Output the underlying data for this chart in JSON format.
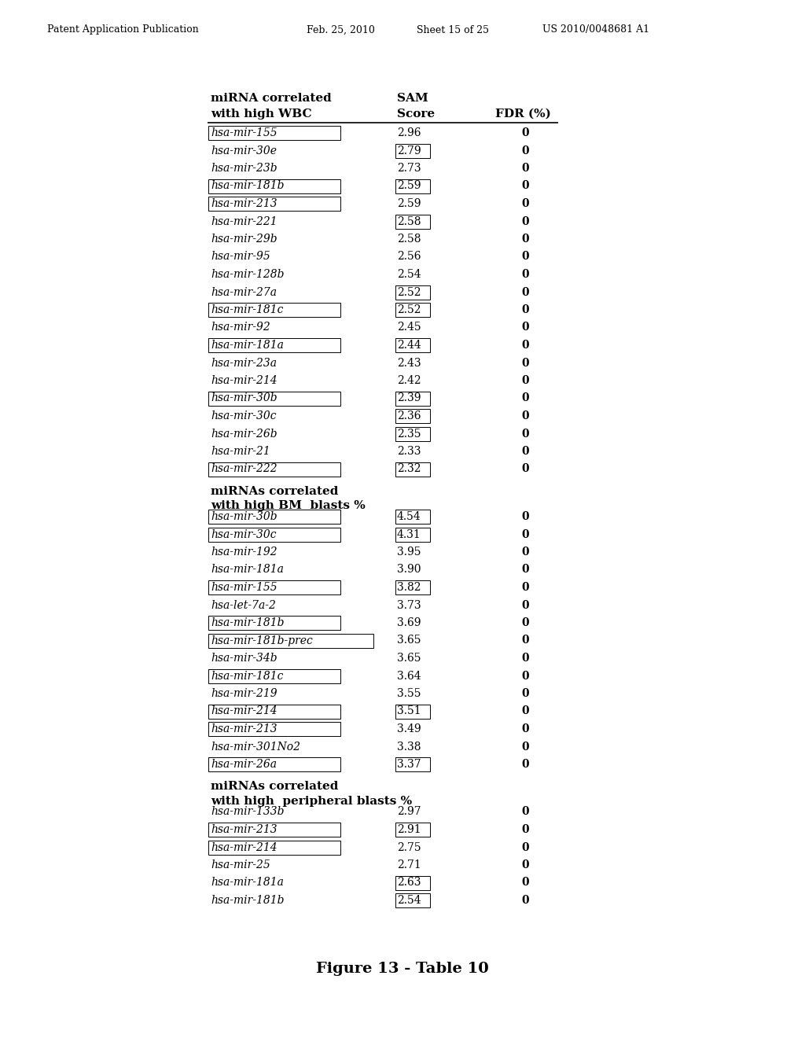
{
  "header_line": "Patent Application Publication    Feb. 25, 2010  Sheet 15 of 25    US 2010/0048681 A1",
  "figure_caption": "Figure 13 - Table 10",
  "table": {
    "section1_header1": "miRNA correlated",
    "section1_header2": "with high WBC",
    "section1_col2_header1": "SAM",
    "section1_col2_header2": "Score",
    "section1_col3_header": "FDR (%)",
    "section1_rows": [
      {
        "name": "hsa-mir-155",
        "score": "2.96",
        "fdr": "0",
        "box_name": true,
        "box_score": false
      },
      {
        "name": "hsa-mir-30e",
        "score": "2.79",
        "fdr": "0",
        "box_name": false,
        "box_score": true
      },
      {
        "name": "hsa-mir-23b",
        "score": "2.73",
        "fdr": "0",
        "box_name": false,
        "box_score": false
      },
      {
        "name": "hsa-mir-181b",
        "score": "2.59",
        "fdr": "0",
        "box_name": true,
        "box_score": true
      },
      {
        "name": "hsa-mir-213",
        "score": "2.59",
        "fdr": "0",
        "box_name": true,
        "box_score": false
      },
      {
        "name": "hsa-mir-221",
        "score": "2.58",
        "fdr": "0",
        "box_name": false,
        "box_score": true
      },
      {
        "name": "hsa-mir-29b",
        "score": "2.58",
        "fdr": "0",
        "box_name": false,
        "box_score": false
      },
      {
        "name": "hsa-mir-95",
        "score": "2.56",
        "fdr": "0",
        "box_name": false,
        "box_score": false
      },
      {
        "name": "hsa-mir-128b",
        "score": "2.54",
        "fdr": "0",
        "box_name": false,
        "box_score": false
      },
      {
        "name": "hsa-mir-27a",
        "score": "2.52",
        "fdr": "0",
        "box_name": false,
        "box_score": true
      },
      {
        "name": "hsa-mir-181c",
        "score": "2.52",
        "fdr": "0",
        "box_name": true,
        "box_score": true
      },
      {
        "name": "hsa-mir-92",
        "score": "2.45",
        "fdr": "0",
        "box_name": false,
        "box_score": false
      },
      {
        "name": "hsa-mir-181a",
        "score": "2.44",
        "fdr": "0",
        "box_name": true,
        "box_score": true
      },
      {
        "name": "hsa-mir-23a",
        "score": "2.43",
        "fdr": "0",
        "box_name": false,
        "box_score": false
      },
      {
        "name": "hsa-mir-214",
        "score": "2.42",
        "fdr": "0",
        "box_name": false,
        "box_score": false
      },
      {
        "name": "hsa-mir-30b",
        "score": "2.39",
        "fdr": "0",
        "box_name": true,
        "box_score": true
      },
      {
        "name": "hsa-mir-30c",
        "score": "2.36",
        "fdr": "0",
        "box_name": false,
        "box_score": true
      },
      {
        "name": "hsa-mir-26b",
        "score": "2.35",
        "fdr": "0",
        "box_name": false,
        "box_score": true
      },
      {
        "name": "hsa-mir-21",
        "score": "2.33",
        "fdr": "0",
        "box_name": false,
        "box_score": false
      },
      {
        "name": "hsa-mir-222",
        "score": "2.32",
        "fdr": "0",
        "box_name": true,
        "box_score": true
      }
    ],
    "section2_header1": "miRNAs correlated",
    "section2_header2": "with high BM  blasts %",
    "section2_rows": [
      {
        "name": "hsa-mir-30b",
        "score": "4.54",
        "fdr": "0",
        "box_name": true,
        "box_score": true
      },
      {
        "name": "hsa-mir-30c",
        "score": "4.31",
        "fdr": "0",
        "box_name": true,
        "box_score": true
      },
      {
        "name": "hsa-mir-192",
        "score": "3.95",
        "fdr": "0",
        "box_name": false,
        "box_score": false
      },
      {
        "name": "hsa-mir-181a",
        "score": "3.90",
        "fdr": "0",
        "box_name": false,
        "box_score": false
      },
      {
        "name": "hsa-mir-155",
        "score": "3.82",
        "fdr": "0",
        "box_name": true,
        "box_score": true
      },
      {
        "name": "hsa-let-7a-2",
        "score": "3.73",
        "fdr": "0",
        "box_name": false,
        "box_score": false
      },
      {
        "name": "hsa-mir-181b",
        "score": "3.69",
        "fdr": "0",
        "box_name": true,
        "box_score": false
      },
      {
        "name": "hsa-mir-181b-prec",
        "score": "3.65",
        "fdr": "0",
        "box_name": true,
        "box_score": false
      },
      {
        "name": "hsa-mir-34b",
        "score": "3.65",
        "fdr": "0",
        "box_name": false,
        "box_score": false
      },
      {
        "name": "hsa-mir-181c",
        "score": "3.64",
        "fdr": "0",
        "box_name": true,
        "box_score": false
      },
      {
        "name": "hsa-mir-219",
        "score": "3.55",
        "fdr": "0",
        "box_name": false,
        "box_score": false
      },
      {
        "name": "hsa-mir-214",
        "score": "3.51",
        "fdr": "0",
        "box_name": true,
        "box_score": true
      },
      {
        "name": "hsa-mir-213",
        "score": "3.49",
        "fdr": "0",
        "box_name": true,
        "box_score": false
      },
      {
        "name": "hsa-mir-301No2",
        "score": "3.38",
        "fdr": "0",
        "box_name": false,
        "box_score": false
      },
      {
        "name": "hsa-mir-26a",
        "score": "3.37",
        "fdr": "0",
        "box_name": true,
        "box_score": true
      }
    ],
    "section3_header1": "miRNAs correlated",
    "section3_header2": "with high  peripheral blasts %",
    "section3_rows": [
      {
        "name": "hsa-mir-133b",
        "score": "2.97",
        "fdr": "0",
        "box_name": false,
        "box_score": false
      },
      {
        "name": "hsa-mir-213",
        "score": "2.91",
        "fdr": "0",
        "box_name": true,
        "box_score": true
      },
      {
        "name": "hsa-mir-214",
        "score": "2.75",
        "fdr": "0",
        "box_name": true,
        "box_score": false
      },
      {
        "name": "hsa-mir-25",
        "score": "2.71",
        "fdr": "0",
        "box_name": false,
        "box_score": false
      },
      {
        "name": "hsa-mir-181a",
        "score": "2.63",
        "fdr": "0",
        "box_name": false,
        "box_score": true
      },
      {
        "name": "hsa-mir-181b",
        "score": "2.54",
        "fdr": "0",
        "box_name": false,
        "box_score": true
      }
    ]
  },
  "bg_color": "#ffffff",
  "text_color": "#000000"
}
